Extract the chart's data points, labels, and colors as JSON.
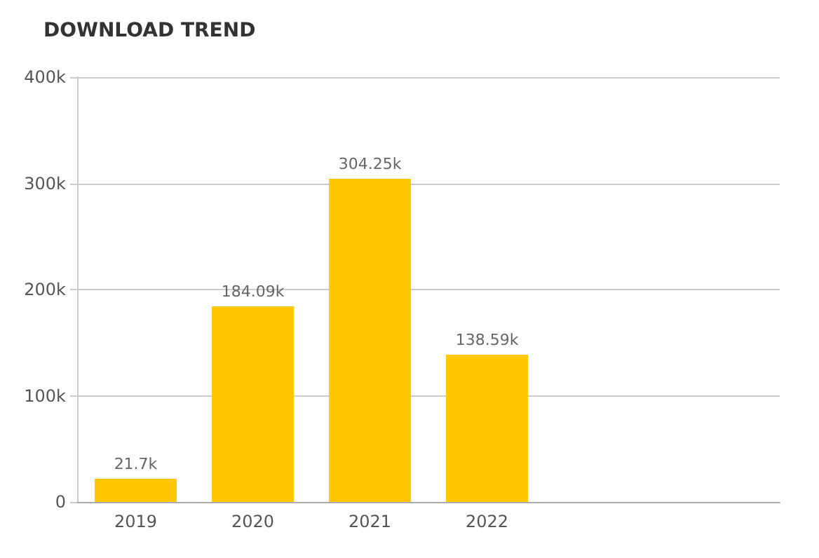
{
  "chart_data": {
    "type": "bar",
    "title": "DOWNLOAD TREND",
    "categories": [
      "2019",
      "2020",
      "2021",
      "2022",
      null,
      null
    ],
    "values": [
      21700,
      184090,
      304250,
      138590,
      null,
      null
    ],
    "value_labels": [
      "21.7k",
      "184.09k",
      "304.25k",
      "138.59k",
      null,
      null
    ],
    "color": "#ffc700",
    "ylim": [
      0,
      400000
    ],
    "yticks": [
      0,
      {
        "value": 100000,
        "label": "100k"
      },
      {
        "value": 200000,
        "label": "200k"
      },
      {
        "value": 300000,
        "label": "300k"
      },
      {
        "value": 400000,
        "label": "400k"
      }
    ],
    "grid": "y"
  }
}
